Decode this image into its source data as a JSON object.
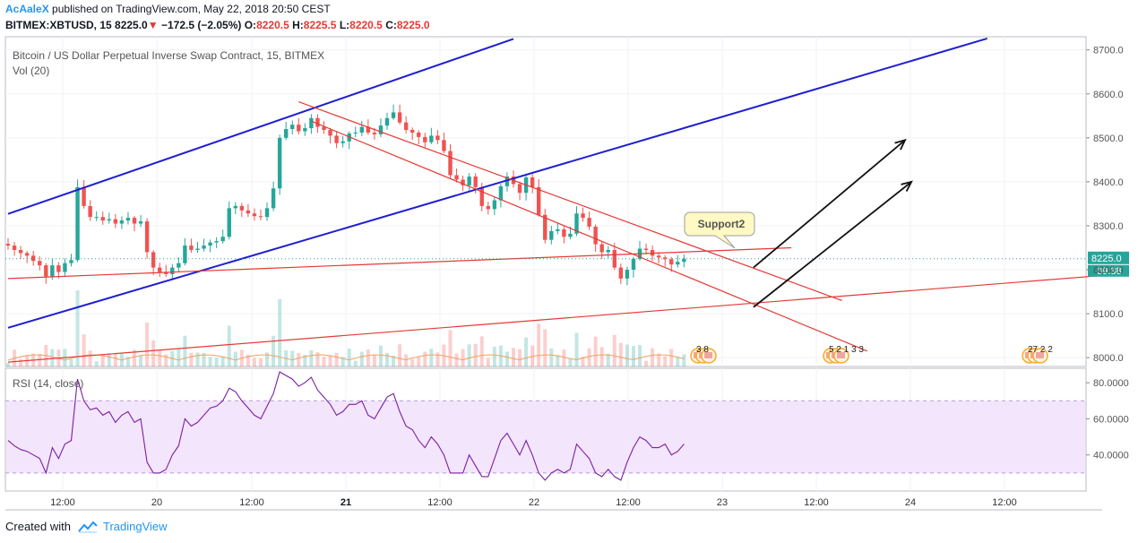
{
  "header": {
    "author": "AcAaleX",
    "published_text": "published on TradingView.com, May 22, 2018 20:50 CEST",
    "symbol": "BITMEX:XBTUSD, 15",
    "last": "8225.0",
    "change": "−172.5 (−2.05%)",
    "o_label": "O:",
    "o": "8220.5",
    "h_label": "H:",
    "h": "8225.5",
    "l_label": "L:",
    "l": "8220.5",
    "c_label": "C:",
    "c": "8225.0"
  },
  "pane": {
    "title": "Bitcoin / US Dollar Perpetual Inverse Swap Contract, 15, BITMEX",
    "vol_label": "Vol (20)",
    "rsi_label": "RSI (14, close)",
    "last_price_tag": "8225.0",
    "timer_tag": "09:38",
    "callout": "Support2",
    "events": [
      {
        "numbers": "3  8"
      },
      {
        "numbers": "5 2 1 3 3"
      },
      {
        "numbers": "27 2 2"
      }
    ]
  },
  "footer": {
    "created_with": "Created with",
    "brand": "TradingView"
  },
  "colors": {
    "up": "#26a69a",
    "down": "#ef5350",
    "channel_blue": "#1e1ed2",
    "trend_red": "#e53935",
    "rsi_line": "#7b1fa2",
    "rsi_band": "#f3e5fb",
    "accent": "#2196f3"
  },
  "chart_data": {
    "type": "candlestick",
    "title": "Bitcoin / US Dollar Perpetual Inverse Swap Contract, 15, BITMEX",
    "price_axis": {
      "ylim": [
        7980,
        8730
      ],
      "ticks": [
        "8700.0",
        "8600.0",
        "8500.0",
        "8400.0",
        "8300.0",
        "8200.0",
        "8100.0",
        "8000.0"
      ]
    },
    "rsi_axis": {
      "ylim": [
        20,
        88
      ],
      "ticks": [
        "80.0000",
        "60.0000",
        "40.0000"
      ],
      "band": [
        30,
        70
      ]
    },
    "x_ticks": [
      "12:00",
      "20",
      "12:00",
      "21",
      "12:00",
      "22",
      "12:00",
      "23",
      "12:00",
      "24",
      "12:00"
    ],
    "x_ticks_bold": [
      "21"
    ],
    "close": [
      8255,
      8245,
      8238,
      8232,
      8220,
      8210,
      8185,
      8210,
      8195,
      8215,
      8222,
      8388,
      8345,
      8320,
      8320,
      8312,
      8315,
      8305,
      8312,
      8318,
      8305,
      8310,
      8240,
      8205,
      8195,
      8190,
      8205,
      8215,
      8255,
      8245,
      8248,
      8255,
      8262,
      8265,
      8275,
      8340,
      8345,
      8335,
      8328,
      8322,
      8320,
      8340,
      8385,
      8500,
      8520,
      8530,
      8515,
      8522,
      8545,
      8525,
      8518,
      8505,
      8488,
      8492,
      8510,
      8512,
      8525,
      8512,
      8508,
      8528,
      8545,
      8558,
      8535,
      8518,
      8512,
      8502,
      8490,
      8505,
      8495,
      8470,
      8415,
      8405,
      8392,
      8412,
      8388,
      8345,
      8338,
      8358,
      8390,
      8412,
      8395,
      8375,
      8410,
      8388,
      8325,
      8268,
      8288,
      8292,
      8275,
      8282,
      8328,
      8318,
      8298,
      8258,
      8240,
      8245,
      8205,
      8180,
      8200,
      8225,
      8248,
      8245,
      8232,
      8228,
      8224,
      8212,
      8218,
      8225
    ],
    "rsi": [
      48,
      45,
      43,
      42,
      40,
      38,
      30,
      44,
      38,
      46,
      48,
      82,
      70,
      65,
      66,
      62,
      64,
      58,
      62,
      64,
      58,
      60,
      36,
      30,
      30,
      32,
      40,
      45,
      60,
      56,
      58,
      62,
      66,
      67,
      70,
      77,
      75,
      70,
      66,
      62,
      60,
      67,
      74,
      86,
      84,
      82,
      78,
      80,
      83,
      76,
      72,
      68,
      62,
      64,
      68,
      68,
      70,
      62,
      60,
      66,
      72,
      74,
      64,
      56,
      54,
      48,
      44,
      50,
      46,
      40,
      30,
      30,
      30,
      40,
      34,
      28,
      28,
      38,
      48,
      52,
      46,
      40,
      48,
      40,
      30,
      26,
      30,
      32,
      30,
      32,
      46,
      42,
      38,
      30,
      28,
      32,
      28,
      26,
      36,
      44,
      50,
      48,
      44,
      44,
      46,
      40,
      42,
      46
    ],
    "lines": [
      {
        "name": "",
        "from": [
          0,
          8327
        ],
        "to": [
          80,
          8725
        ]
      },
      {
        "name": "",
        "from": [
          0,
          8068
        ],
        "to": [
          155,
          8726
        ]
      },
      {
        "name": "",
        "from": [
          0,
          8180
        ],
        "to": [
          124,
          8250
        ]
      },
      {
        "name": "",
        "from": [
          0,
          7990
        ],
        "to": [
          176,
          8190
        ]
      },
      {
        "name": "",
        "from": [
          46,
          8582
        ],
        "to": [
          132,
          8130
        ]
      },
      {
        "name": "",
        "from": [
          48,
          8538
        ],
        "to": [
          136,
          8015
        ]
      },
      {
        "name": "",
        "from": [
          118,
          8205
        ],
        "to": [
          142,
          8495
        ]
      },
      {
        "name": "",
        "from": [
          118,
          8115
        ],
        "to": [
          143,
          8400
        ]
      }
    ]
  }
}
